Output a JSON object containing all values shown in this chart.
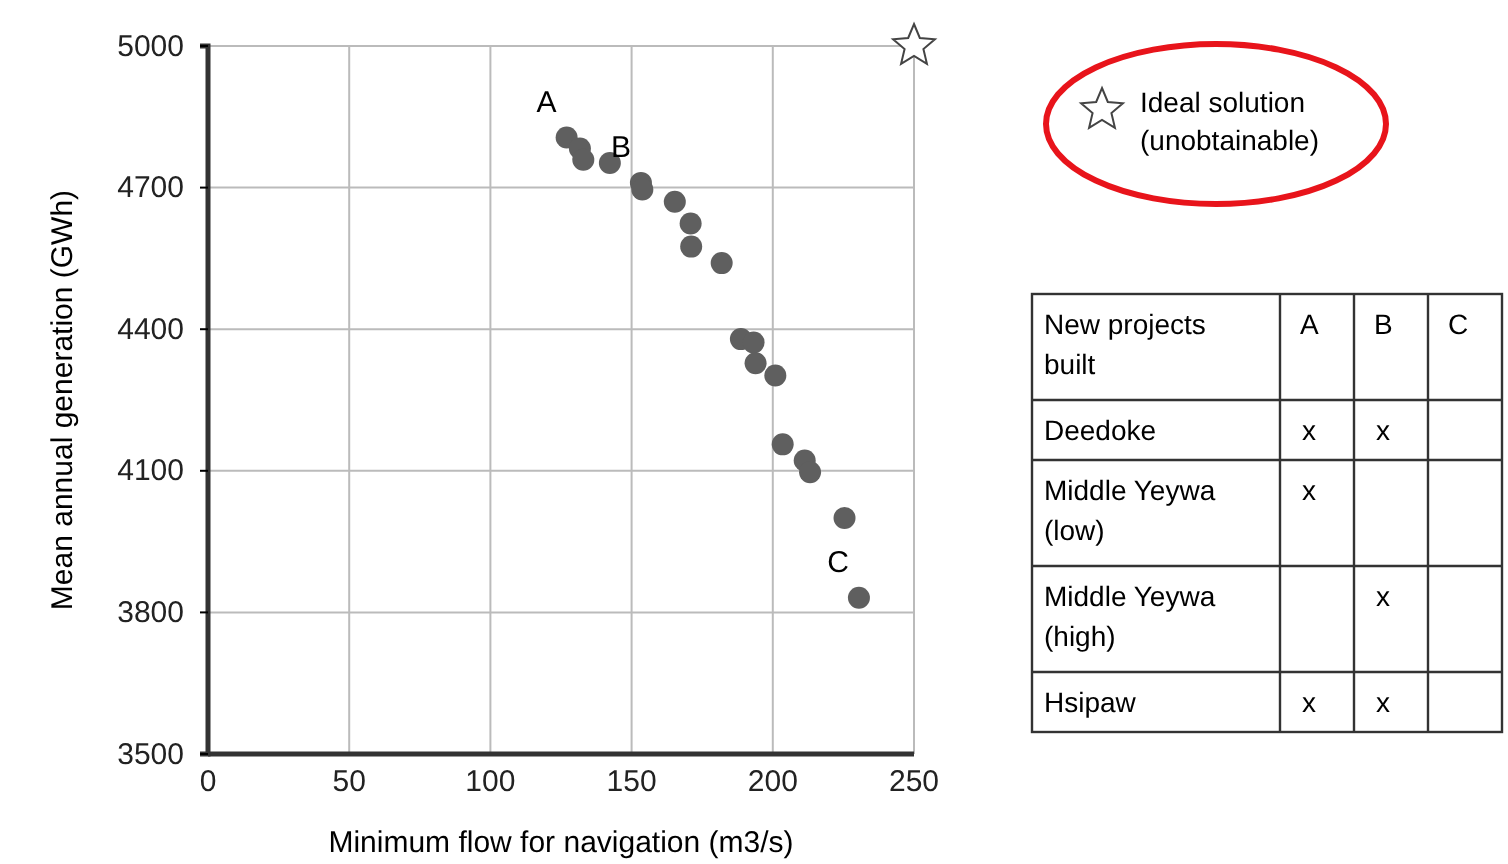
{
  "chart_data": [
    {
      "type": "scatter",
      "xlabel": "Minimum flow for navigation (m3/s)",
      "ylabel": "Mean annual generation (GWh)",
      "xlim": [
        0,
        250
      ],
      "xticks": [
        0,
        50,
        100,
        150,
        200,
        250
      ],
      "ylim": [
        3500,
        5000
      ],
      "yticks": [
        3500,
        3800,
        4100,
        4400,
        4700,
        5000
      ],
      "grid": true,
      "legend": "top right",
      "series": [
        {
          "color": "#5f5f5f",
          "marker": "circle",
          "x": [
            127,
            131.7,
            132.9,
            142.3,
            153.3,
            153.8,
            165.3,
            170.9,
            171.1,
            181.9,
            188.7,
            193.2,
            193.9,
            200.9,
            203.5,
            211.3,
            213.2,
            225.4,
            230.5
          ],
          "values": [
            4806,
            4783,
            4759,
            4752,
            4710,
            4696,
            4670,
            4624,
            4575,
            4540,
            4379,
            4372,
            4328,
            4302,
            4156,
            4122,
            4097,
            4000,
            3831
          ]
        },
        {
          "name": "Ideal solution (unobtainable)",
          "color": "#ffffff",
          "marker": "star",
          "x": [
            250
          ],
          "values": [
            5000
          ]
        }
      ],
      "annotations": [
        {
          "text": "A",
          "x": 127,
          "y": 4806
        },
        {
          "text": "B",
          "x": 153.3,
          "y": 4710
        },
        {
          "text": "C",
          "x": 230.5,
          "y": 3831
        }
      ]
    },
    {
      "type": "other",
      "title": "New projects built",
      "categories": [
        "A",
        "B",
        "C"
      ],
      "y_categories": [
        "Deedoke",
        "Middle Yeywa (low)",
        "Middle Yeywa (high)",
        "Hsipaw"
      ],
      "cell_labels": [
        [
          "x",
          "x",
          null
        ],
        [
          "x",
          null,
          null
        ],
        [
          null,
          "x",
          null
        ],
        [
          "x",
          "x",
          null
        ]
      ]
    }
  ]
}
